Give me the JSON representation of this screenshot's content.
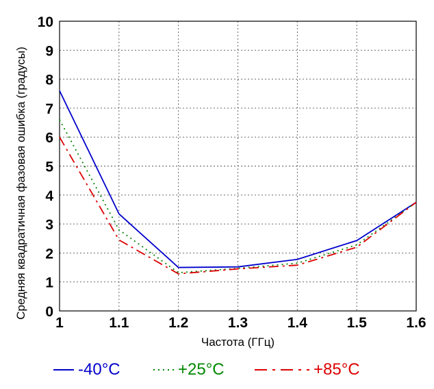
{
  "chart_data": {
    "type": "line",
    "xlabel": "Частота (ГГц)",
    "ylabel": "Средняя квадратичная фазовая ошибка (градусы)",
    "xlim": [
      1,
      1.6
    ],
    "ylim": [
      0,
      10
    ],
    "xticks": [
      "1",
      "1.1",
      "1.2",
      "1.3",
      "1.4",
      "1.5",
      "1.6"
    ],
    "yticks": [
      "0",
      "1",
      "2",
      "3",
      "4",
      "5",
      "6",
      "7",
      "8",
      "9",
      "10"
    ],
    "grid": true,
    "legend_position": "bottom",
    "x": [
      1.0,
      1.1,
      1.2,
      1.3,
      1.4,
      1.5,
      1.6
    ],
    "series": [
      {
        "name": "-40°C",
        "color": "#0000cc",
        "style": "solid",
        "values": [
          7.6,
          3.35,
          1.5,
          1.52,
          1.78,
          2.43,
          3.75
        ]
      },
      {
        "name": "+25°C",
        "color": "#008800",
        "style": "dotted",
        "values": [
          6.6,
          2.8,
          1.32,
          1.47,
          1.65,
          2.28,
          3.75
        ]
      },
      {
        "name": "+85°C",
        "color": "#dd0000",
        "style": "dashdot",
        "values": [
          6.0,
          2.45,
          1.28,
          1.45,
          1.58,
          2.2,
          3.75
        ]
      }
    ]
  }
}
